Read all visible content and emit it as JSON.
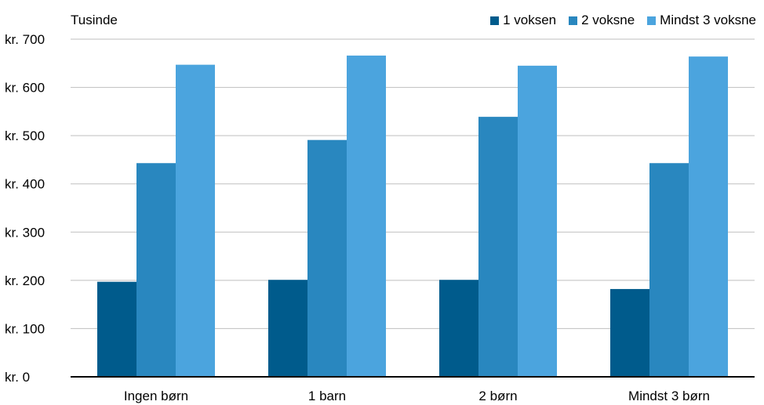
{
  "colors": {
    "series1": "#005b8c",
    "series2": "#2987bf",
    "series3": "#4ba4de",
    "grid": "#bfbfbf",
    "axis": "#000000"
  },
  "chart_data": {
    "type": "bar",
    "unit_label": "Tusinde",
    "categories": [
      "Ingen børn",
      "1 barn",
      "2 børn",
      "Mindst 3 børn"
    ],
    "series": [
      {
        "name": "1 voksen",
        "values": [
          197,
          201,
          201,
          182
        ]
      },
      {
        "name": "2 voksne",
        "values": [
          443,
          491,
          539,
          443
        ]
      },
      {
        "name": "Mindst 3 voksne",
        "values": [
          647,
          666,
          645,
          664
        ]
      }
    ],
    "ylim": [
      0,
      700
    ],
    "yticks": [
      0,
      100,
      200,
      300,
      400,
      500,
      600,
      700
    ],
    "ytick_labels": [
      "kr. 0",
      "kr. 100",
      "kr. 200",
      "kr. 300",
      "kr. 400",
      "kr. 500",
      "kr. 600",
      "kr. 700"
    ],
    "grid": true,
    "legend_position": "top-right"
  }
}
